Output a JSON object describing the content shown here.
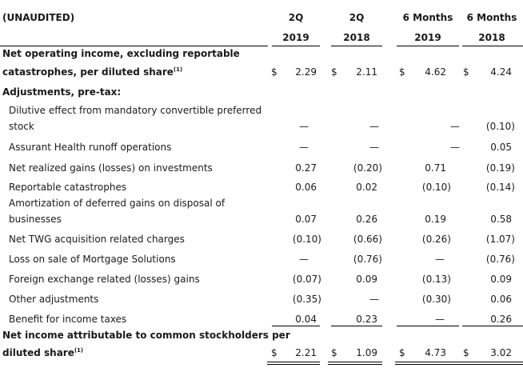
{
  "header": {
    "label": "(UNAUDITED)",
    "columns": [
      {
        "line1": "2Q",
        "line2": "2019"
      },
      {
        "line1": "2Q",
        "line2": "2018"
      },
      {
        "line1": "6 Months",
        "line2": "2019"
      },
      {
        "line1": "6 Months",
        "line2": "2018"
      }
    ]
  },
  "currency": "$",
  "footnote_mark": "(1)",
  "noi": {
    "label_line1": "Net operating income, excluding reportable",
    "label_line2": "catastrophes, per diluted share",
    "values": [
      "2.29",
      "2.11",
      "4.62",
      "4.24"
    ]
  },
  "adjustments_heading": "Adjustments, pre-tax:",
  "rows": [
    {
      "label_line1": "Dilutive effect from mandatory convertible preferred",
      "label_line2": "stock",
      "values": [
        "—",
        "—",
        "—",
        "(0.10)"
      ]
    },
    {
      "label": "Assurant Health runoff operations",
      "values": [
        "—",
        "—",
        "—",
        "0.05"
      ]
    },
    {
      "label": "Net realized gains (losses) on investments",
      "values": [
        "0.27",
        "(0.20)",
        "0.71",
        "(0.19)"
      ]
    },
    {
      "label": "Reportable catastrophes",
      "values": [
        "0.06",
        "0.02",
        "(0.10)",
        "(0.14)"
      ]
    },
    {
      "label_line1": "Amortization of deferred gains on disposal of",
      "label_line2": "businesses",
      "values": [
        "0.07",
        "0.26",
        "0.19",
        "0.58"
      ]
    },
    {
      "label": "Net TWG acquisition related charges",
      "values": [
        "(0.10)",
        "(0.66)",
        "(0.26)",
        "(1.07)"
      ]
    },
    {
      "label": "Loss on sale of Mortgage Solutions",
      "values": [
        "—",
        "(0.76)",
        "—",
        "(0.76)"
      ]
    },
    {
      "label": "Foreign exchange related (losses) gains",
      "values": [
        "(0.07)",
        "0.09",
        "(0.13)",
        "0.09"
      ]
    },
    {
      "label": "Other adjustments",
      "values": [
        "(0.35)",
        "—",
        "(0.30)",
        "0.06"
      ]
    },
    {
      "label": "Benefit for income taxes",
      "values": [
        "0.04",
        "0.23",
        "—",
        "0.26"
      ]
    }
  ],
  "net_income": {
    "label_line1": "Net income attributable to common stockholders per",
    "label_line2": "diluted share",
    "values": [
      "2.21",
      "1.09",
      "4.73",
      "3.02"
    ]
  }
}
